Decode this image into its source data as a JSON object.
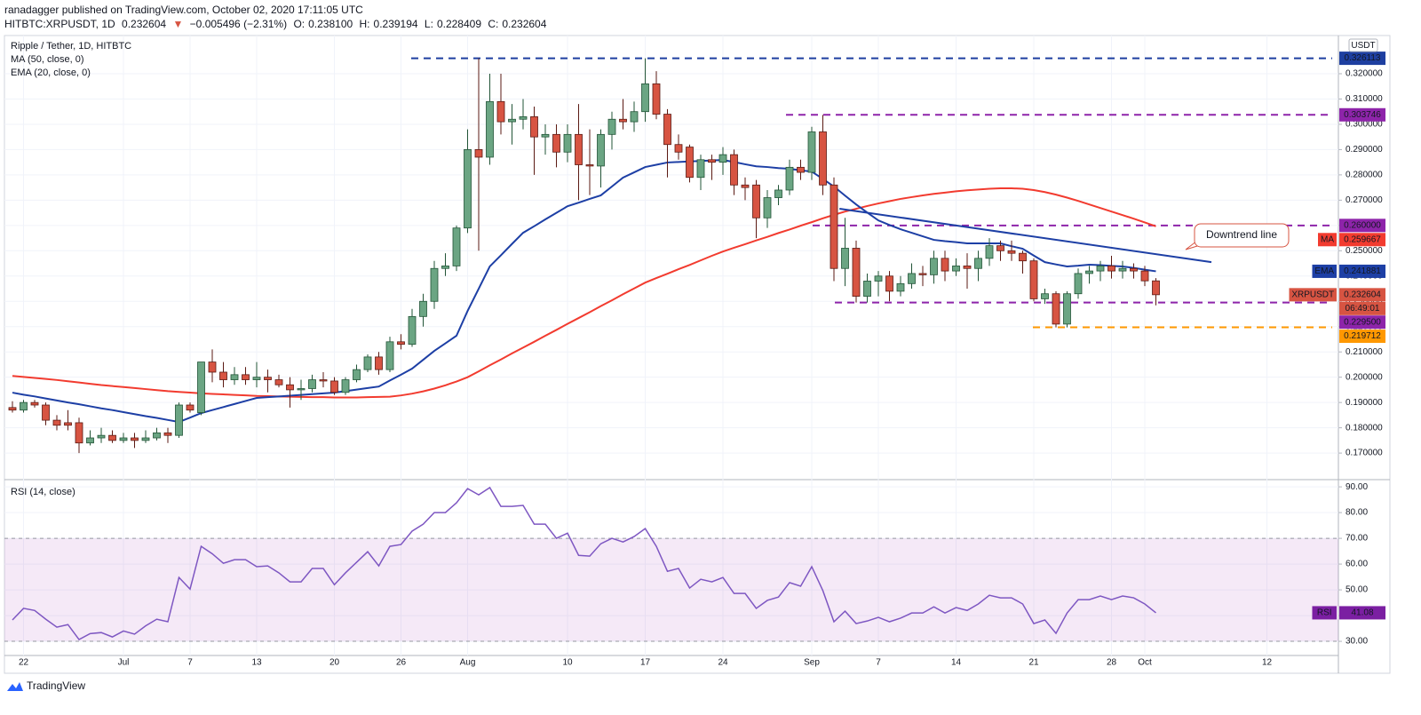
{
  "header": {
    "published": "ranadagger published on TradingView.com, October 02, 2020 17:11:05 UTC",
    "symbol": "HITBTC:XRPUSDT, 1D",
    "last": "0.232604",
    "arrow": "▼",
    "change": "−0.005496 (−2.31%)",
    "ohlc": [
      [
        "O:",
        "0.238100"
      ],
      [
        "H:",
        "0.239194"
      ],
      [
        "L:",
        "0.228409"
      ],
      [
        "C:",
        "0.232604"
      ]
    ]
  },
  "footer": {
    "brand": "TradingView"
  },
  "chart_data": [
    {
      "type": "candlestick",
      "title": "Ripple / Tether, 1D, HITBTC",
      "currency": "USDT",
      "up_color": "#6ba583",
      "down_color": "#d75442",
      "categories": [
        null,
        "22",
        null,
        null,
        null,
        null,
        null,
        null,
        null,
        null,
        "Jul",
        null,
        null,
        null,
        null,
        null,
        "7",
        null,
        null,
        null,
        null,
        null,
        "13",
        null,
        null,
        null,
        null,
        null,
        null,
        "20",
        null,
        null,
        null,
        null,
        null,
        "26",
        null,
        null,
        null,
        null,
        null,
        "Aug",
        null,
        null,
        null,
        null,
        null,
        null,
        null,
        null,
        "10",
        null,
        null,
        null,
        null,
        null,
        null,
        "17",
        null,
        null,
        null,
        null,
        null,
        null,
        "24",
        null,
        null,
        null,
        null,
        null,
        null,
        null,
        "Sep",
        null,
        null,
        null,
        null,
        null,
        "7",
        null,
        null,
        null,
        null,
        null,
        null,
        "14",
        null,
        null,
        null,
        null,
        null,
        null,
        "21",
        null,
        null,
        null,
        null,
        null,
        null,
        "28",
        null,
        null,
        "Oct",
        null,
        null,
        null,
        null,
        null,
        null,
        null,
        null,
        null,
        null,
        "12",
        null,
        null,
        null,
        null,
        null,
        null
      ],
      "open": [
        0.188,
        0.187,
        0.19,
        0.189,
        0.183,
        0.182,
        0.182,
        0.174,
        0.176,
        0.177,
        0.175,
        0.176,
        0.175,
        0.176,
        0.178,
        0.177,
        0.189,
        0.186,
        0.206,
        0.202,
        0.199,
        0.201,
        0.199,
        0.2,
        0.199,
        0.197,
        0.195,
        0.1955,
        0.199,
        0.1985,
        0.194,
        0.199,
        0.203,
        0.208,
        0.203,
        0.214,
        0.213,
        0.224,
        0.23,
        0.243,
        0.244,
        0.259,
        0.29,
        0.287,
        0.309,
        0.301,
        0.302,
        0.303,
        0.295,
        0.296,
        0.289,
        0.296,
        0.284,
        0.2835,
        0.296,
        0.302,
        0.301,
        0.305,
        0.316,
        0.304,
        0.292,
        0.291,
        0.279,
        0.286,
        0.285,
        0.288,
        0.276,
        0.276,
        0.263,
        0.271,
        0.274,
        0.283,
        0.281,
        0.297,
        0.276,
        0.243,
        0.251,
        0.232,
        0.238,
        0.24,
        0.234,
        0.237,
        0.241,
        0.2405,
        0.247,
        0.242,
        0.244,
        0.243,
        0.247,
        0.252,
        0.25,
        0.249,
        0.246,
        0.231,
        0.233,
        0.221,
        0.233,
        0.241,
        0.242,
        0.244,
        0.242,
        0.243,
        0.242,
        0.2381,
        null,
        null,
        null,
        null,
        null,
        null,
        null,
        null,
        null,
        null,
        null,
        null,
        null,
        null,
        null,
        null
      ],
      "high": [
        0.1905,
        0.191,
        0.191,
        0.19,
        0.185,
        0.187,
        0.184,
        0.179,
        0.18,
        0.179,
        0.178,
        0.178,
        0.179,
        0.18,
        0.18,
        0.19,
        0.19,
        0.206,
        0.211,
        0.206,
        0.204,
        0.204,
        0.206,
        0.203,
        0.201,
        0.2,
        0.199,
        0.201,
        0.202,
        0.2,
        0.2,
        0.205,
        0.209,
        0.21,
        0.216,
        0.217,
        0.227,
        0.233,
        0.246,
        0.249,
        0.26,
        0.298,
        0.3261,
        0.32,
        0.32,
        0.308,
        0.31,
        0.307,
        0.3,
        0.3,
        0.3,
        0.308,
        0.298,
        0.298,
        0.305,
        0.31,
        0.309,
        0.3261,
        0.321,
        0.306,
        0.296,
        0.292,
        0.288,
        0.288,
        0.291,
        0.29,
        0.279,
        0.278,
        0.274,
        0.276,
        0.286,
        0.286,
        0.299,
        0.3037,
        0.279,
        0.263,
        0.254,
        0.241,
        0.242,
        0.242,
        0.24,
        0.245,
        0.244,
        0.25,
        0.25,
        0.247,
        0.249,
        0.25,
        0.255,
        0.254,
        0.254,
        0.25,
        0.247,
        0.235,
        0.234,
        0.234,
        0.243,
        0.244,
        0.246,
        0.248,
        0.246,
        0.245,
        0.244,
        0.239194,
        null,
        null,
        null,
        null,
        null,
        null,
        null,
        null,
        null,
        null,
        null,
        null,
        null,
        null,
        null,
        null
      ],
      "low": [
        0.186,
        0.186,
        0.188,
        0.181,
        0.179,
        0.179,
        0.17,
        0.173,
        0.174,
        0.174,
        0.174,
        0.172,
        0.174,
        0.175,
        0.174,
        0.176,
        0.186,
        0.185,
        0.198,
        0.196,
        0.197,
        0.197,
        0.196,
        0.194,
        0.196,
        0.188,
        0.191,
        0.194,
        0.196,
        0.193,
        0.193,
        0.198,
        0.202,
        0.201,
        0.202,
        0.211,
        0.212,
        0.22,
        0.227,
        0.24,
        0.242,
        0.257,
        0.25,
        0.284,
        0.296,
        0.292,
        0.298,
        0.28,
        0.288,
        0.283,
        0.285,
        0.27,
        0.272,
        0.275,
        0.29,
        0.298,
        0.297,
        0.301,
        0.302,
        0.279,
        0.286,
        0.277,
        0.274,
        0.278,
        0.28,
        0.272,
        0.27,
        0.255,
        0.259,
        0.268,
        0.272,
        0.278,
        0.278,
        0.272,
        0.238,
        0.236,
        0.2295,
        0.2295,
        0.232,
        0.23,
        0.232,
        0.235,
        0.236,
        0.237,
        0.238,
        0.24,
        0.235,
        0.238,
        0.244,
        0.246,
        0.246,
        0.241,
        0.23,
        0.229,
        0.2197,
        0.2197,
        0.231,
        0.237,
        0.238,
        0.239,
        0.239,
        0.239,
        0.236,
        0.228409,
        null,
        null,
        null,
        null,
        null,
        null,
        null,
        null,
        null,
        null,
        null,
        null,
        null,
        null,
        null,
        null
      ],
      "close": [
        0.187,
        0.19,
        0.189,
        0.183,
        0.181,
        0.181,
        0.174,
        0.176,
        0.177,
        0.175,
        0.176,
        0.175,
        0.176,
        0.178,
        0.177,
        0.189,
        0.187,
        0.206,
        0.202,
        0.199,
        0.201,
        0.199,
        0.2,
        0.199,
        0.197,
        0.195,
        0.1955,
        0.199,
        0.1985,
        0.194,
        0.199,
        0.203,
        0.208,
        0.203,
        0.214,
        0.213,
        0.224,
        0.23,
        0.243,
        0.244,
        0.259,
        0.29,
        0.287,
        0.309,
        0.301,
        0.302,
        0.303,
        0.295,
        0.296,
        0.289,
        0.296,
        0.284,
        0.2835,
        0.296,
        0.302,
        0.301,
        0.305,
        0.316,
        0.304,
        0.292,
        0.289,
        0.279,
        0.286,
        0.285,
        0.288,
        0.276,
        0.275,
        0.263,
        0.271,
        0.274,
        0.283,
        0.281,
        0.297,
        0.276,
        0.243,
        0.251,
        0.232,
        0.238,
        0.24,
        0.234,
        0.237,
        0.241,
        0.2405,
        0.247,
        0.242,
        0.244,
        0.243,
        0.247,
        0.252,
        0.25,
        0.249,
        0.246,
        0.231,
        0.233,
        0.221,
        0.233,
        0.241,
        0.242,
        0.244,
        0.242,
        0.243,
        0.242,
        0.2381,
        0.232604,
        null,
        null,
        null,
        null,
        null,
        null,
        null,
        null,
        null,
        null,
        null,
        null,
        null,
        null,
        null,
        null
      ],
      "series": [
        {
          "name": "MA (50, close, 0)",
          "color": "#f23b2f",
          "values": [
            0.2005,
            0.2001,
            0.1997,
            0.1993,
            0.1989,
            0.1984,
            0.1979,
            0.1974,
            0.1969,
            0.1965,
            0.1961,
            0.1957,
            0.1953,
            0.1949,
            0.1945,
            0.1942,
            0.1939,
            0.1936,
            0.1934,
            0.1932,
            0.193,
            0.1928,
            0.1926,
            0.1925,
            0.1924,
            0.1923,
            0.1922,
            0.1921,
            0.1921,
            0.192,
            0.192,
            0.192,
            0.1921,
            0.1922,
            0.1923,
            0.1928,
            0.1935,
            0.1944,
            0.1955,
            0.1968,
            0.1983,
            0.2,
            0.2023,
            0.2047,
            0.207,
            0.2094,
            0.2117,
            0.214,
            0.2164,
            0.2187,
            0.2211,
            0.2234,
            0.2257,
            0.2281,
            0.2304,
            0.2328,
            0.2351,
            0.2374,
            0.2392,
            0.2409,
            0.2427,
            0.2444,
            0.2462,
            0.248,
            0.2497,
            0.2512,
            0.2526,
            0.2541,
            0.2555,
            0.257,
            0.2584,
            0.2599,
            0.2613,
            0.2628,
            0.2642,
            0.2655,
            0.2666,
            0.2677,
            0.2687,
            0.2696,
            0.2705,
            0.2712,
            0.2719,
            0.2725,
            0.273,
            0.2735,
            0.2739,
            0.2742,
            0.2745,
            0.2747,
            0.2747,
            0.2745,
            0.274,
            0.2732,
            0.2722,
            0.271,
            0.2697,
            0.2683,
            0.2669,
            0.2655,
            0.2641,
            0.2627,
            0.2612,
            0.259667,
            null,
            null,
            null,
            null,
            null,
            null,
            null,
            null,
            null,
            null,
            null,
            null,
            null,
            null,
            null,
            null
          ]
        },
        {
          "name": "EMA (20, close, 0)",
          "color": "#1d3fa5",
          "values": [
            0.1939,
            0.1931,
            0.1924,
            0.1916,
            0.1908,
            0.19,
            0.1893,
            0.1885,
            0.1877,
            0.187,
            0.1862,
            0.1854,
            0.1846,
            0.1839,
            0.1831,
            0.1823,
            0.184,
            0.1858,
            0.187,
            0.1882,
            0.1894,
            0.1906,
            0.1918,
            0.1921,
            0.1924,
            0.1927,
            0.193,
            0.1933,
            0.1936,
            0.1939,
            0.1945,
            0.1951,
            0.1957,
            0.1963,
            0.1987,
            0.201,
            0.2034,
            0.2069,
            0.2104,
            0.2134,
            0.2164,
            0.2262,
            0.235,
            0.2438,
            0.2482,
            0.2527,
            0.2571,
            0.2597,
            0.2624,
            0.265,
            0.2676,
            0.269,
            0.2705,
            0.2719,
            0.2754,
            0.2789,
            0.281,
            0.2831,
            0.284,
            0.2849,
            0.2851,
            0.2853,
            0.2855,
            0.2857,
            0.2859,
            0.2851,
            0.2842,
            0.2834,
            0.2831,
            0.2827,
            0.2824,
            0.2818,
            0.2813,
            0.2784,
            0.2754,
            0.2718,
            0.2683,
            0.2651,
            0.262,
            0.2602,
            0.2585,
            0.2571,
            0.2557,
            0.2543,
            0.2538,
            0.2534,
            0.2529,
            0.2529,
            0.2529,
            0.2529,
            0.2518,
            0.2508,
            0.2481,
            0.2455,
            0.2446,
            0.2438,
            0.2441,
            0.2445,
            0.2443,
            0.244,
            0.2438,
            0.2432,
            0.2425,
            0.241881,
            null,
            null,
            null,
            null,
            null,
            null,
            null,
            null,
            null,
            null,
            null,
            null,
            null,
            null,
            null,
            null
          ]
        }
      ],
      "ylim": [
        0.1595,
        0.3351
      ],
      "yticks": [
        {
          "value": 0.17,
          "label": "0.170000"
        },
        {
          "value": 0.18,
          "label": "0.180000"
        },
        {
          "value": 0.19,
          "label": "0.190000"
        },
        {
          "value": 0.2,
          "label": "0.200000"
        },
        {
          "value": 0.21,
          "label": "0.210000"
        },
        {
          "value": 0.22,
          "label": "0.220000"
        },
        {
          "value": 0.23,
          "label": "0.230000"
        },
        {
          "value": 0.24,
          "label": "0.240000"
        },
        {
          "value": 0.25,
          "label": "0.250000"
        },
        {
          "value": 0.26,
          "label": "0.260000"
        },
        {
          "value": 0.27,
          "label": "0.270000"
        },
        {
          "value": 0.28,
          "label": "0.280000"
        },
        {
          "value": 0.29,
          "label": "0.290000"
        },
        {
          "value": 0.3,
          "label": "0.300000"
        },
        {
          "value": 0.31,
          "label": "0.310000"
        },
        {
          "value": 0.32,
          "label": "0.320000"
        }
      ],
      "grid": true,
      "levels": [
        {
          "value": 0.326113,
          "color": "#1e3fa0"
        },
        {
          "value": 0.303746,
          "color": "#8e24aa"
        },
        {
          "value": 0.26,
          "label": "0.260000",
          "color": "#8e24aa"
        },
        {
          "value": 0.2295,
          "label": "0.229500",
          "color": "#8e24aa"
        },
        {
          "value": 0.219712,
          "color": "#ff9800"
        }
      ],
      "trendline": {
        "values": [
          0.2666,
          0.2455
        ],
        "color": "#1d3fa5"
      },
      "annotation": "Downtrend line",
      "tags": [
        {
          "name": "XRPUSDT",
          "value": 0.232604,
          "color": "#d75442",
          "countdown": "06:49:01"
        },
        {
          "name": "MA",
          "value": 0.259667,
          "color": "#f23b2f"
        },
        {
          "name": "EMA",
          "value": 0.241881,
          "color": "#1d3fa5"
        }
      ]
    },
    {
      "type": "line",
      "series": [
        {
          "name": "RSI (14, close)",
          "color": "#7e57c2",
          "values": [
            38.3,
            42.8,
            42,
            38.6,
            35.5,
            36.5,
            30.7,
            33,
            33.4,
            31.7,
            34,
            32.8,
            36,
            38.6,
            37.6,
            54.8,
            50.3,
            66.9,
            64,
            60.3,
            61.7,
            61.7,
            59,
            59.3,
            56.6,
            53.1,
            53.1,
            58.3,
            58.3,
            52,
            56.6,
            60.7,
            64.8,
            59.3,
            66.9,
            67.6,
            72.8,
            75.5,
            80,
            80,
            83.8,
            89.3,
            86.9,
            89.7,
            82.4,
            82.4,
            82.8,
            75.5,
            75.5,
            70,
            72,
            63.4,
            63.1,
            67.9,
            70,
            68.6,
            70.7,
            73.8,
            66.9,
            57.2,
            58.3,
            50.7,
            54.1,
            53.1,
            54.8,
            48.6,
            48.6,
            42.8,
            45.9,
            47.2,
            52.8,
            51.4,
            59,
            49.7,
            37.6,
            41.7,
            36.9,
            37.9,
            39.3,
            37.6,
            39,
            41,
            41,
            43.4,
            41,
            43.1,
            42,
            44.5,
            47.9,
            46.9,
            46.9,
            44.5,
            36.9,
            38.3,
            33.1,
            41,
            46.2,
            46.2,
            47.6,
            46.2,
            47.6,
            46.9,
            44.5,
            41.08,
            null,
            null,
            null,
            null,
            null,
            null,
            null,
            null,
            null,
            null,
            null,
            null,
            null,
            null,
            null,
            null
          ]
        }
      ],
      "ylim": [
        24.5,
        92.8
      ],
      "yticks": [
        {
          "value": 30,
          "label": "30.00"
        },
        {
          "value": 40,
          "label": "40.00"
        },
        {
          "value": 50,
          "label": "50.00"
        },
        {
          "value": 60,
          "label": "60.00"
        },
        {
          "value": 70,
          "label": "70.00"
        },
        {
          "value": 80,
          "label": "80.00"
        },
        {
          "value": 90,
          "label": "90.00"
        }
      ],
      "band": [
        30,
        70
      ],
      "band_color": "#9c27b0",
      "tag": {
        "name": "RSI",
        "value": 41.08,
        "color": "#7b1fa2"
      }
    }
  ]
}
